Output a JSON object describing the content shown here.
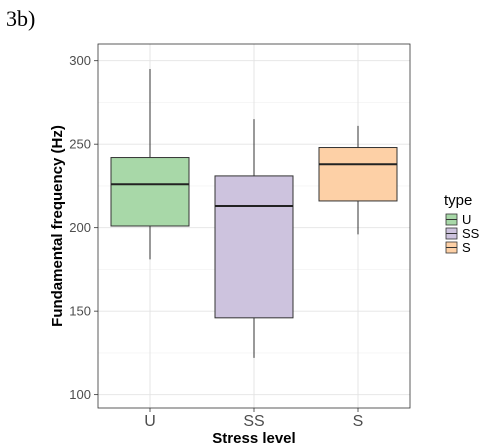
{
  "figure_label": "3b)",
  "chart_data": {
    "type": "box",
    "xlabel": "Stress level",
    "ylabel": "Fundamental frequency (Hz)",
    "categories": [
      "U",
      "SS",
      "S"
    ],
    "ylim": [
      92,
      310
    ],
    "yticks": [
      100,
      150,
      200,
      250,
      300
    ],
    "grid": true,
    "legend": {
      "title": "type",
      "placement": "right",
      "entries": [
        "U",
        "SS",
        "S"
      ]
    },
    "boxes": [
      {
        "category": "U",
        "min": 181,
        "q1": 201,
        "median": 226,
        "q3": 242,
        "max": 295,
        "color": "#a8d8a8"
      },
      {
        "category": "SS",
        "min": 122,
        "q1": 146,
        "median": 213,
        "q3": 231,
        "max": 265,
        "color": "#cdc3de"
      },
      {
        "category": "S",
        "min": 196,
        "q1": 216,
        "median": 238,
        "q3": 248,
        "max": 261,
        "color": "#fdd0a6"
      }
    ]
  }
}
